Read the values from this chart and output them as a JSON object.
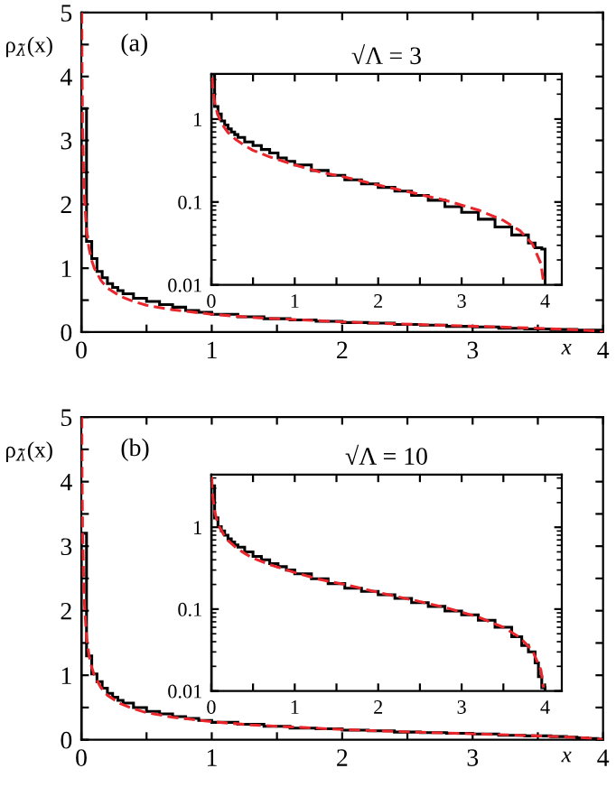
{
  "chart_data": [
    {
      "type": "line",
      "ylabel": "ρ$_{λ̃}$(x)",
      "xlabel": "x",
      "annotations": [
        "(a)"
      ],
      "xlim": [
        0,
        4
      ],
      "ylim": [
        0,
        5
      ],
      "xticks": [
        0,
        {
          "value": 0.5,
          "label": null
        },
        1,
        {
          "value": 1.5,
          "label": null
        },
        2,
        {
          "value": 2.5,
          "label": null
        },
        3,
        {
          "value": 3.5,
          "label": null
        },
        4
      ],
      "yticks": [
        0,
        {
          "value": 0.5,
          "label": null
        },
        1,
        {
          "value": 1.5,
          "label": null
        },
        2,
        {
          "value": 2.5,
          "label": null
        },
        3,
        {
          "value": 3.5,
          "label": null
        },
        4,
        {
          "value": 4.5,
          "label": null
        },
        5
      ],
      "series": [
        {
          "type": "line",
          "color": "#e8262b",
          "line_style": "dashed",
          "x": [
            0.004,
            0.006,
            0.01,
            0.02,
            0.04,
            0.06,
            0.08,
            0.1,
            0.15,
            0.2,
            0.3,
            0.4,
            0.5,
            0.7,
            1.0,
            1.3,
            1.6,
            2.0,
            2.4,
            2.8,
            3.2,
            3.5,
            3.7,
            3.85,
            3.95,
            4.0
          ],
          "values": [
            5.0,
            4.1,
            3.18,
            2.25,
            1.59,
            1.3,
            1.12,
            1.0,
            0.81,
            0.69,
            0.56,
            0.48,
            0.42,
            0.35,
            0.28,
            0.23,
            0.2,
            0.16,
            0.13,
            0.105,
            0.08,
            0.06,
            0.045,
            0.031,
            0.018,
            0
          ]
        },
        {
          "type": "histogram",
          "color": "#000000",
          "bins": [
            0,
            0.04,
            0.08,
            0.12,
            0.16,
            0.2,
            0.24,
            0.28,
            0.32,
            0.4,
            0.5,
            0.6,
            0.7,
            0.8,
            0.9,
            1.0,
            1.2,
            1.4,
            1.6,
            1.8,
            2.0,
            2.2,
            2.4,
            2.6,
            2.8,
            3.0,
            3.2,
            3.4,
            3.6,
            3.8,
            3.88,
            3.96,
            4.0
          ],
          "values": [
            3.5,
            1.42,
            1.15,
            0.95,
            0.85,
            0.76,
            0.7,
            0.65,
            0.6,
            0.53,
            0.48,
            0.43,
            0.39,
            0.34,
            0.31,
            0.28,
            0.24,
            0.21,
            0.19,
            0.17,
            0.15,
            0.14,
            0.12,
            0.11,
            0.09,
            0.08,
            0.06,
            0.05,
            0.04,
            0.03,
            0.03,
            0.03
          ]
        }
      ]
    },
    {
      "type": "line",
      "title": "√Λ = 3",
      "log": "y",
      "xlim": [
        0,
        4.2
      ],
      "ylim": [
        0.01,
        3.5
      ],
      "xticks": [
        0,
        {
          "value": 0.5,
          "label": null
        },
        1,
        {
          "value": 1.5,
          "label": null
        },
        2,
        {
          "value": 2.5,
          "label": null
        },
        3,
        {
          "value": 3.5,
          "label": null
        },
        4
      ],
      "yticks": [
        0.01,
        0.1,
        1
      ],
      "series": [
        {
          "type": "line",
          "color": "#e8262b",
          "line_style": "dashed",
          "x": [
            0.01,
            0.02,
            0.04,
            0.06,
            0.08,
            0.1,
            0.15,
            0.2,
            0.3,
            0.4,
            0.5,
            0.7,
            1.0,
            1.3,
            1.6,
            2.0,
            2.4,
            2.8,
            3.2,
            3.5,
            3.7,
            3.85,
            3.95,
            3.98
          ],
          "values": [
            3.18,
            2.25,
            1.59,
            1.3,
            1.12,
            1.0,
            0.81,
            0.69,
            0.56,
            0.48,
            0.42,
            0.35,
            0.28,
            0.23,
            0.2,
            0.16,
            0.13,
            0.105,
            0.08,
            0.06,
            0.045,
            0.031,
            0.018,
            0.011
          ]
        },
        {
          "type": "histogram",
          "color": "#000000",
          "bins": [
            0,
            0.04,
            0.08,
            0.12,
            0.16,
            0.2,
            0.24,
            0.28,
            0.32,
            0.4,
            0.5,
            0.6,
            0.7,
            0.8,
            0.9,
            1.0,
            1.2,
            1.4,
            1.6,
            1.8,
            2.0,
            2.2,
            2.4,
            2.6,
            2.8,
            3.0,
            3.2,
            3.4,
            3.6,
            3.8,
            3.88,
            3.96,
            4.0
          ],
          "values": [
            3.5,
            1.42,
            1.15,
            0.95,
            0.85,
            0.76,
            0.7,
            0.65,
            0.6,
            0.53,
            0.48,
            0.43,
            0.39,
            0.34,
            0.31,
            0.28,
            0.24,
            0.21,
            0.185,
            0.165,
            0.15,
            0.135,
            0.12,
            0.105,
            0.088,
            0.075,
            0.062,
            0.05,
            0.04,
            0.032,
            0.028,
            0.027
          ]
        }
      ]
    },
    {
      "type": "line",
      "ylabel": "ρ$_{λ̃}$(x)",
      "xlabel": "x",
      "annotations": [
        "(b)"
      ],
      "xlim": [
        0,
        4
      ],
      "ylim": [
        0,
        5
      ],
      "xticks": [
        0,
        {
          "value": 0.5,
          "label": null
        },
        1,
        {
          "value": 1.5,
          "label": null
        },
        2,
        {
          "value": 2.5,
          "label": null
        },
        3,
        {
          "value": 3.5,
          "label": null
        },
        4
      ],
      "yticks": [
        0,
        {
          "value": 0.5,
          "label": null
        },
        1,
        {
          "value": 1.5,
          "label": null
        },
        2,
        {
          "value": 2.5,
          "label": null
        },
        3,
        {
          "value": 3.5,
          "label": null
        },
        4,
        {
          "value": 4.5,
          "label": null
        },
        5
      ],
      "series": [
        {
          "type": "line",
          "color": "#e8262b",
          "line_style": "dashed",
          "x": [
            0.004,
            0.006,
            0.01,
            0.02,
            0.04,
            0.06,
            0.08,
            0.1,
            0.15,
            0.2,
            0.3,
            0.4,
            0.5,
            0.7,
            1.0,
            1.3,
            1.6,
            2.0,
            2.4,
            2.8,
            3.2,
            3.5,
            3.7,
            3.85,
            3.95,
            4.0
          ],
          "values": [
            5.0,
            4.1,
            3.18,
            2.25,
            1.59,
            1.3,
            1.12,
            1.0,
            0.81,
            0.69,
            0.56,
            0.48,
            0.42,
            0.35,
            0.28,
            0.23,
            0.2,
            0.16,
            0.13,
            0.105,
            0.08,
            0.06,
            0.045,
            0.031,
            0.018,
            0
          ]
        },
        {
          "type": "histogram",
          "color": "#000000",
          "bins": [
            0,
            0.04,
            0.08,
            0.12,
            0.16,
            0.2,
            0.24,
            0.28,
            0.32,
            0.4,
            0.5,
            0.6,
            0.7,
            0.8,
            0.9,
            1.0,
            1.2,
            1.4,
            1.6,
            1.8,
            2.0,
            2.2,
            2.4,
            2.6,
            2.8,
            3.0,
            3.2,
            3.4,
            3.6,
            3.72,
            3.8,
            3.88,
            3.92,
            3.96,
            4.0
          ],
          "values": [
            3.2,
            1.3,
            1.02,
            0.9,
            0.8,
            0.72,
            0.66,
            0.61,
            0.57,
            0.5,
            0.44,
            0.4,
            0.36,
            0.33,
            0.3,
            0.27,
            0.24,
            0.21,
            0.18,
            0.17,
            0.15,
            0.14,
            0.12,
            0.11,
            0.1,
            0.09,
            0.07,
            0.06,
            0.05,
            0.04,
            0.03,
            0.02,
            0.02,
            0.01
          ]
        }
      ]
    },
    {
      "type": "line",
      "title": "√Λ = 10",
      "log": "y",
      "xlim": [
        0,
        4.2
      ],
      "ylim": [
        0.01,
        4.4
      ],
      "xticks": [
        0,
        {
          "value": 0.5,
          "label": null
        },
        1,
        {
          "value": 1.5,
          "label": null
        },
        2,
        {
          "value": 2.5,
          "label": null
        },
        3,
        {
          "value": 3.5,
          "label": null
        },
        4
      ],
      "yticks": [
        0.01,
        0.1,
        1
      ],
      "series": [
        {
          "type": "line",
          "color": "#e8262b",
          "line_style": "dashed",
          "x": [
            0.006,
            0.01,
            0.02,
            0.04,
            0.06,
            0.08,
            0.1,
            0.15,
            0.2,
            0.3,
            0.4,
            0.5,
            0.7,
            1.0,
            1.3,
            1.6,
            2.0,
            2.4,
            2.8,
            3.2,
            3.5,
            3.7,
            3.85,
            3.95,
            3.98
          ],
          "values": [
            4.1,
            3.18,
            2.25,
            1.59,
            1.3,
            1.12,
            1.0,
            0.81,
            0.69,
            0.56,
            0.48,
            0.42,
            0.35,
            0.28,
            0.23,
            0.2,
            0.16,
            0.13,
            0.105,
            0.08,
            0.06,
            0.045,
            0.031,
            0.018,
            0.011
          ]
        },
        {
          "type": "histogram",
          "color": "#000000",
          "bins": [
            0,
            0.04,
            0.08,
            0.12,
            0.16,
            0.2,
            0.24,
            0.28,
            0.32,
            0.4,
            0.5,
            0.6,
            0.7,
            0.8,
            0.9,
            1.0,
            1.2,
            1.4,
            1.6,
            1.8,
            2.0,
            2.2,
            2.4,
            2.6,
            2.8,
            3.0,
            3.2,
            3.4,
            3.6,
            3.72,
            3.8,
            3.88,
            3.92,
            3.96,
            4.0
          ],
          "values": [
            3.2,
            1.3,
            1.02,
            0.9,
            0.8,
            0.72,
            0.66,
            0.61,
            0.57,
            0.5,
            0.44,
            0.4,
            0.36,
            0.33,
            0.3,
            0.27,
            0.235,
            0.205,
            0.18,
            0.165,
            0.15,
            0.135,
            0.12,
            0.108,
            0.095,
            0.085,
            0.073,
            0.06,
            0.046,
            0.036,
            0.03,
            0.022,
            0.015,
            0.011
          ]
        }
      ]
    }
  ]
}
